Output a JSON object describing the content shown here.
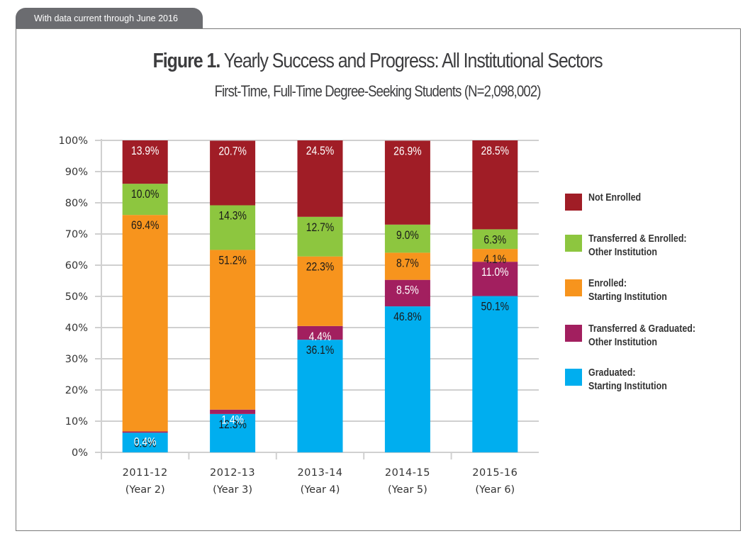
{
  "banner": {
    "text": "With data current through June 2016"
  },
  "figure": {
    "label": "Figure 1.",
    "title": "Yearly Success and Progress: All Institutional Sectors",
    "subtitle": "First-Time, Full-Time Degree-Seeking Students (N=2,098,002)"
  },
  "chart_data": {
    "type": "bar",
    "stacked": true,
    "title": "Figure 1. Yearly Success and Progress: All Institutional Sectors",
    "subtitle": "First-Time, Full-Time Degree-Seeking Students (N=2,098,002)",
    "xlabel": "",
    "ylabel": "",
    "ylim": [
      0,
      100
    ],
    "yticks": [
      "0%",
      "10%",
      "20%",
      "30%",
      "40%",
      "50%",
      "60%",
      "70%",
      "80%",
      "90%",
      "100%"
    ],
    "grid": true,
    "legend_position": "right",
    "categories": [
      [
        "2011-12",
        "(Year 2)"
      ],
      [
        "2012-13",
        "(Year 3)"
      ],
      [
        "2013-14",
        "(Year 4)"
      ],
      [
        "2014-15",
        "(Year 5)"
      ],
      [
        "2015-16",
        "(Year 6)"
      ]
    ],
    "series": [
      {
        "name": "Graduated: Starting Institution",
        "label_lines": [
          "Graduated:",
          "Starting Institution"
        ],
        "color": "#00aeef",
        "label_color": "#1a1a1a",
        "values": [
          6.3,
          12.3,
          36.1,
          46.8,
          50.1
        ]
      },
      {
        "name": "Transferred & Graduated: Other Institution",
        "label_lines": [
          "Transferred & Graduated:",
          "Other Institution"
        ],
        "color": "#a21f5f",
        "label_color": "#ffffff",
        "values": [
          0.4,
          1.4,
          4.4,
          8.5,
          11.0
        ]
      },
      {
        "name": "Enrolled: Starting Institution",
        "label_lines": [
          "Enrolled:",
          "Starting Institution"
        ],
        "color": "#f7941d",
        "label_color": "#1a1a1a",
        "values": [
          69.4,
          51.2,
          22.3,
          8.7,
          4.1
        ]
      },
      {
        "name": "Transferred & Enrolled: Other Institution",
        "label_lines": [
          "Transferred & Enrolled:",
          "Other Institution"
        ],
        "color": "#8dc63f",
        "label_color": "#1a1a1a",
        "values": [
          10.0,
          14.3,
          12.7,
          9.0,
          6.3
        ]
      },
      {
        "name": "Not Enrolled",
        "label_lines": [
          "Not Enrolled"
        ],
        "color": "#a01d26",
        "label_color": "#ffffff",
        "values": [
          13.9,
          20.7,
          24.5,
          26.9,
          28.5
        ]
      }
    ],
    "legend_order": [
      "Not Enrolled",
      "Transferred & Enrolled: Other Institution",
      "Enrolled: Starting Institution",
      "Transferred & Graduated: Other Institution",
      "Graduated: Starting Institution"
    ]
  }
}
